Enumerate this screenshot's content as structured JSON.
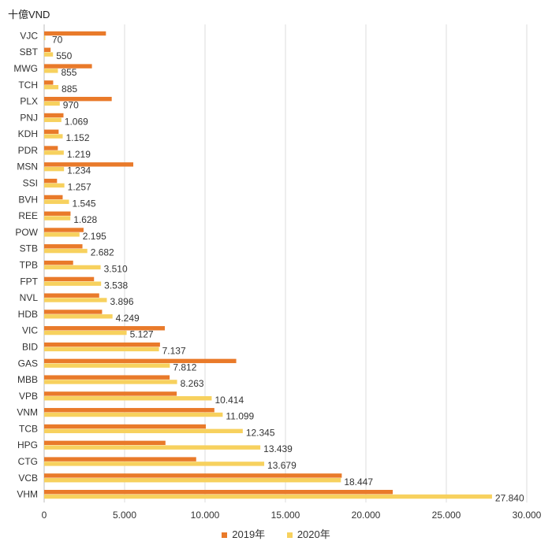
{
  "unit_label": "十億VND",
  "colors": {
    "series_2019": "#E97A2A",
    "series_2020": "#F7D15E",
    "grid": "#DDDDDD",
    "axis": "#BBBBBB",
    "text": "#333333"
  },
  "chart_data": {
    "type": "bar",
    "orientation": "horizontal",
    "categories": [
      "VJC",
      "SBT",
      "MWG",
      "TCH",
      "PLX",
      "PNJ",
      "KDH",
      "PDR",
      "MSN",
      "SSI",
      "BVH",
      "REE",
      "POW",
      "STB",
      "TPB",
      "FPT",
      "NVL",
      "HDB",
      "VIC",
      "BID",
      "GAS",
      "MBB",
      "VPB",
      "VNM",
      "TCB",
      "HPG",
      "CTG",
      "VCB",
      "VHM"
    ],
    "series": [
      {
        "name": "2019年",
        "values": [
          3840,
          400,
          2970,
          560,
          4200,
          1200,
          900,
          850,
          5540,
          800,
          1150,
          1640,
          2450,
          2380,
          1800,
          3100,
          3420,
          3600,
          7500,
          7200,
          11940,
          7800,
          8240,
          10580,
          10050,
          7540,
          9450,
          18500,
          21670
        ]
      },
      {
        "name": "2020年",
        "values": [
          70,
          550,
          855,
          885,
          970,
          1069,
          1152,
          1219,
          1234,
          1257,
          1545,
          1628,
          2195,
          2682,
          3510,
          3538,
          3896,
          4249,
          5127,
          7137,
          7812,
          8263,
          10414,
          11099,
          12345,
          13439,
          13679,
          18447,
          27840
        ]
      }
    ],
    "data_labels": [
      "70",
      "550",
      "855",
      "885",
      "970",
      "1.069",
      "1.152",
      "1.219",
      "1.234",
      "1.257",
      "1.545",
      "1.628",
      "2.195",
      "2.682",
      "3.510",
      "3.538",
      "3.896",
      "4.249",
      "5.127",
      "7.137",
      "7.812",
      "8.263",
      "10.414",
      "11.099",
      "12.345",
      "13.439",
      "13.679",
      "18.447",
      "27.840"
    ],
    "xlim": [
      0,
      30000
    ],
    "x_ticks": [
      "0",
      "5.000",
      "10.000",
      "15.000",
      "20.000",
      "25.000",
      "30.000"
    ],
    "grid": true,
    "legend_position": "bottom"
  }
}
